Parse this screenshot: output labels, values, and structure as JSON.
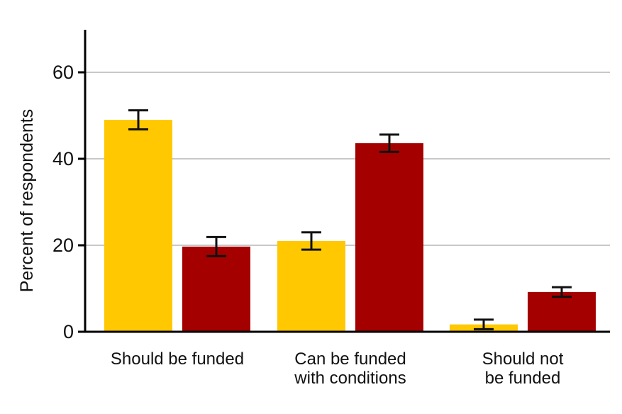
{
  "chart_data": {
    "type": "bar",
    "title": "",
    "xlabel": "",
    "ylabel": "Percent of respondents",
    "ylim": [
      0,
      70
    ],
    "yticks": [
      0,
      20,
      40,
      60
    ],
    "grid": true,
    "legend": "none",
    "categories": [
      [
        "Should be funded"
      ],
      [
        "Can be funded",
        "with conditions"
      ],
      [
        "Should not",
        "be funded"
      ]
    ],
    "series": [
      {
        "color": "#FFC800",
        "values": [
          49,
          21,
          1.7
        ],
        "error_low": [
          46.8,
          19.0,
          0.6
        ],
        "error_high": [
          51.2,
          23.0,
          2.8
        ]
      },
      {
        "color": "#A50000",
        "values": [
          19.7,
          43.6,
          9.2
        ],
        "error_low": [
          17.5,
          41.6,
          8.1
        ],
        "error_high": [
          21.9,
          45.6,
          10.3
        ]
      }
    ]
  }
}
